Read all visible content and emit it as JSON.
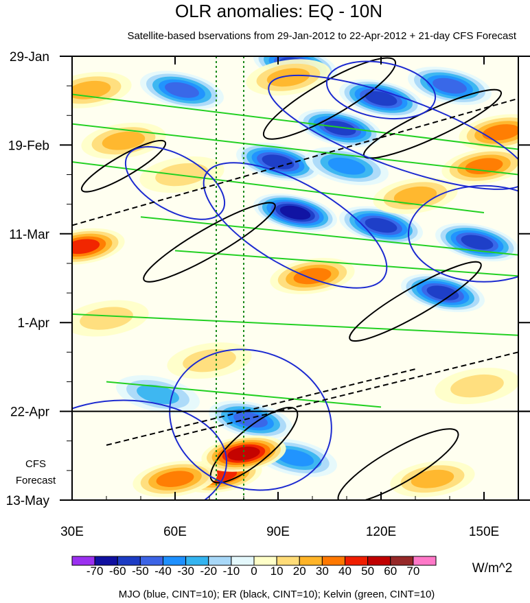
{
  "chart_data": {
    "type": "heatmap",
    "title": "OLR anomalies: EQ - 10N",
    "subtitle": "Satellite-based bservations from 29-Jan-2012 to 22-Apr-2012 + 21-day CFS Forecast",
    "x_axis": {
      "range": [
        30,
        160
      ],
      "ticks": [
        {
          "value": 30,
          "label": "30E"
        },
        {
          "value": 60,
          "label": "60E"
        },
        {
          "value": 90,
          "label": "90E"
        },
        {
          "value": 120,
          "label": "120E"
        },
        {
          "value": 150,
          "label": "150E"
        }
      ]
    },
    "y_axis": {
      "range_days": [
        0,
        104
      ],
      "direction": "time increases downward",
      "ticks": [
        {
          "day": 0,
          "label": "29-Jan"
        },
        {
          "day": 21,
          "label": "19-Feb"
        },
        {
          "day": 42,
          "label": "11-Mar"
        },
        {
          "day": 63,
          "label": "1-Apr"
        },
        {
          "day": 84,
          "label": "22-Apr"
        },
        {
          "day": 105,
          "label": "13-May"
        }
      ]
    },
    "forecast_start_day": 84,
    "forecast_label_line1": "CFS",
    "forecast_label_line2": "Forecast",
    "reference_longitudes": [
      72,
      80
    ],
    "colorbar": {
      "units": "W/m^2",
      "labels": [
        "-70",
        "-60",
        "-50",
        "-40",
        "-30",
        "-20",
        "-10",
        "0",
        "10",
        "20",
        "30",
        "40",
        "50",
        "60",
        "70"
      ],
      "colors": [
        "#9b30f0",
        "#1010a0",
        "#1c3cc4",
        "#3c64e6",
        "#1e90ff",
        "#34b4f0",
        "#a8d8f8",
        "#e4f8fc",
        "#ffffc8",
        "#ffdc78",
        "#ffb428",
        "#ff7800",
        "#f01e00",
        "#c00000",
        "#962828",
        "#ff78c8"
      ]
    },
    "anomaly_features": [
      {
        "lon": 62,
        "day": 8,
        "value": -50
      },
      {
        "lon": 95,
        "day": 2,
        "value": -60
      },
      {
        "lon": 108,
        "day": 17,
        "value": -60
      },
      {
        "lon": 120,
        "day": 10,
        "value": -60
      },
      {
        "lon": 140,
        "day": 7,
        "value": -50
      },
      {
        "lon": 90,
        "day": 25,
        "value": -60
      },
      {
        "lon": 95,
        "day": 37,
        "value": -70
      },
      {
        "lon": 120,
        "day": 40,
        "value": -60
      },
      {
        "lon": 148,
        "day": 44,
        "value": -60
      },
      {
        "lon": 138,
        "day": 56,
        "value": -60
      },
      {
        "lon": 82,
        "day": 86,
        "value": -50
      },
      {
        "lon": 95,
        "day": 95,
        "value": -40
      },
      {
        "lon": 55,
        "day": 80,
        "value": -30
      },
      {
        "lon": 110,
        "day": 26,
        "value": -40
      },
      {
        "lon": 35,
        "day": 8,
        "value": 30
      },
      {
        "lon": 45,
        "day": 20,
        "value": 30
      },
      {
        "lon": 33,
        "day": 45,
        "value": 50
      },
      {
        "lon": 62,
        "day": 28,
        "value": 20
      },
      {
        "lon": 150,
        "day": 26,
        "value": 40
      },
      {
        "lon": 155,
        "day": 18,
        "value": 40
      },
      {
        "lon": 100,
        "day": 52,
        "value": 40
      },
      {
        "lon": 93,
        "day": 5,
        "value": 30
      },
      {
        "lon": 73,
        "day": 99,
        "value": 50
      },
      {
        "lon": 80,
        "day": 94,
        "value": 60
      },
      {
        "lon": 60,
        "day": 100,
        "value": 40
      },
      {
        "lon": 135,
        "day": 100,
        "value": 30
      },
      {
        "lon": 148,
        "day": 78,
        "value": 20
      },
      {
        "lon": 40,
        "day": 62,
        "value": 20
      },
      {
        "lon": 70,
        "day": 72,
        "value": 20
      },
      {
        "lon": 130,
        "day": 33,
        "value": 30
      }
    ]
  },
  "footer": {
    "legend_note": "MJO (blue, CINT=10); ER (black, CINT=10); Kelvin (green, CINT=10)"
  }
}
